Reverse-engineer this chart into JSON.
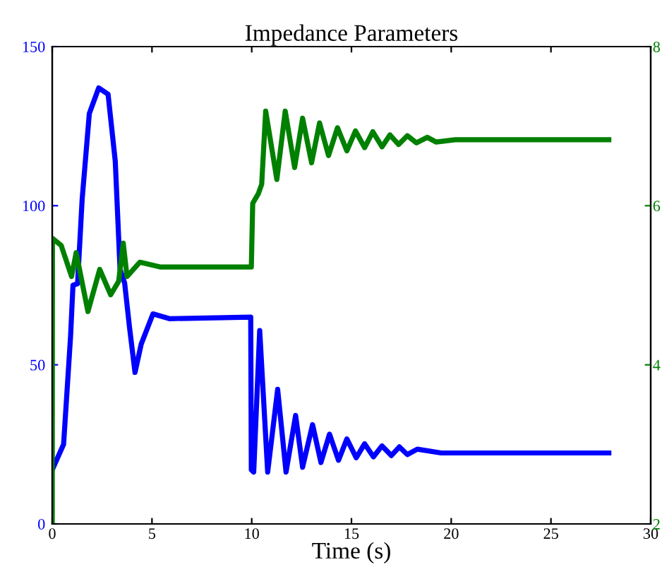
{
  "chart_data": {
    "type": "line",
    "title": "Impedance Parameters",
    "xlabel": "Time (s)",
    "xlim": [
      0,
      30
    ],
    "xticks": [
      0,
      5,
      10,
      15,
      20,
      25,
      30
    ],
    "ylim": [
      0,
      150
    ],
    "yticks": [
      0,
      50,
      100,
      150
    ],
    "y2lim": [
      2,
      8
    ],
    "y2ticks": [
      2,
      4,
      6,
      8
    ],
    "grid": false,
    "marker": "none",
    "line_style": "solid",
    "series": [
      {
        "color": "#0000ff",
        "axis": "y",
        "x": [
          0,
          0.57,
          0.92,
          1.04,
          1.27,
          1.5,
          1.86,
          2.33,
          2.8,
          3.16,
          3.4,
          3.63,
          3.87,
          4.15,
          4.46,
          5.05,
          5.87,
          9.95,
          9.98,
          10.1,
          10.4,
          10.8,
          11.3,
          11.72,
          12.2,
          12.55,
          13.05,
          13.47,
          13.9,
          14.35,
          14.77,
          15.24,
          15.66,
          16.1,
          16.53,
          17.0,
          17.4,
          17.8,
          18.3,
          19.5,
          27.9
        ],
        "values": [
          17,
          25,
          59,
          75,
          75.5,
          102,
          129,
          137,
          135,
          114,
          80,
          75.7,
          62,
          47.6,
          56.5,
          66,
          64.5,
          65,
          17,
          16.3,
          60.8,
          16.3,
          42.3,
          16.3,
          34.1,
          17.8,
          31.2,
          19.3,
          28.2,
          20,
          26.7,
          20.8,
          25.2,
          21.1,
          24.5,
          21.5,
          24.2,
          21.8,
          23.5,
          22.3,
          22.3
        ]
      },
      {
        "color": "#008000",
        "axis": "y2",
        "x": [
          0,
          0.01,
          0.45,
          0.97,
          1.2,
          1.79,
          2.38,
          2.93,
          3.33,
          3.56,
          3.75,
          4.39,
          5.4,
          9.98,
          10.05,
          10.33,
          10.5,
          10.7,
          11.26,
          11.68,
          12.15,
          12.55,
          13.0,
          13.4,
          13.85,
          14.3,
          14.77,
          15.2,
          15.66,
          16.07,
          16.53,
          16.93,
          17.36,
          17.8,
          18.26,
          18.8,
          19.25,
          20.2,
          27.9
        ],
        "values": [
          2,
          5.59,
          5.5,
          5.11,
          5.41,
          4.67,
          5.2,
          4.88,
          5.05,
          5.53,
          5.11,
          5.29,
          5.23,
          5.23,
          6.03,
          6.15,
          6.27,
          7.19,
          6.33,
          7.19,
          6.48,
          7.1,
          6.54,
          7.04,
          6.63,
          6.98,
          6.69,
          6.94,
          6.73,
          6.93,
          6.74,
          6.89,
          6.77,
          6.88,
          6.79,
          6.86,
          6.8,
          6.83,
          6.83
        ]
      }
    ]
  }
}
